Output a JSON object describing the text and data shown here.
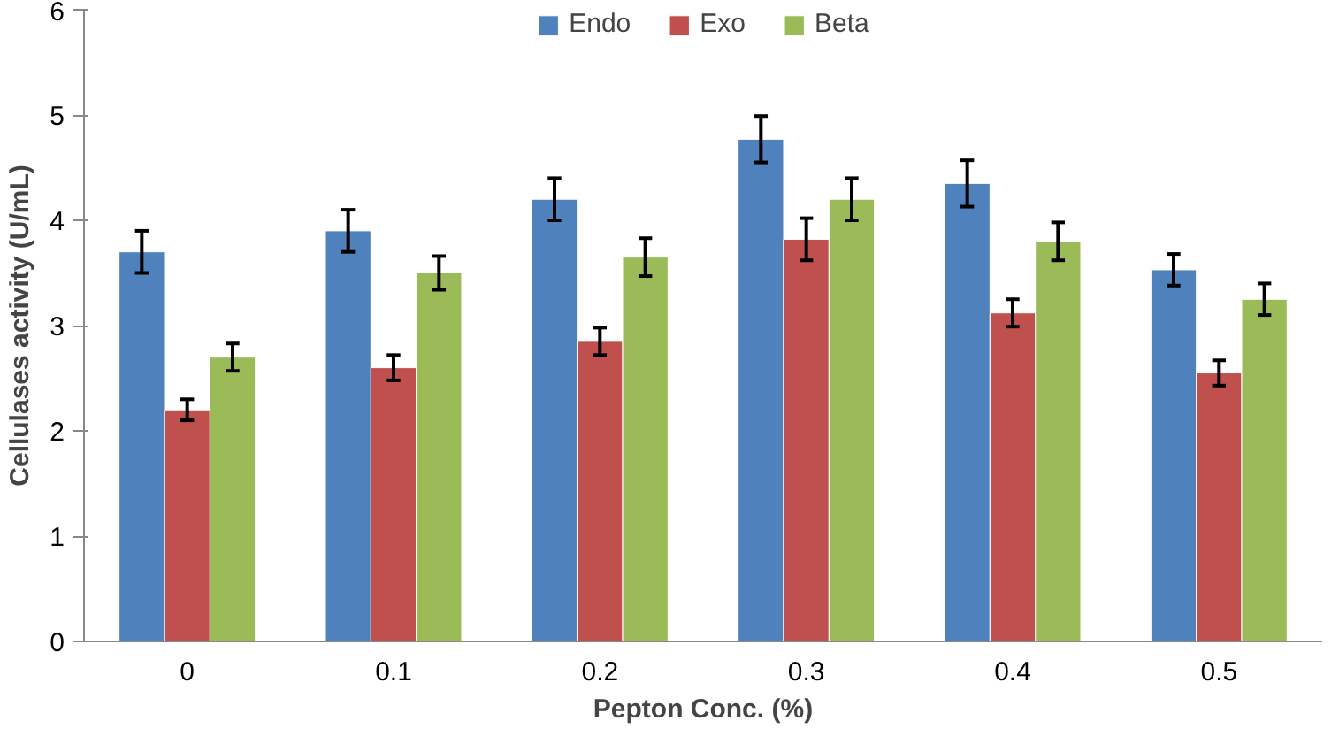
{
  "chart_data": {
    "type": "bar",
    "xlabel": "Pepton Conc. (%)",
    "ylabel": "Cellulases activity (U/mL)",
    "categories": [
      "0",
      "0.1",
      "0.2",
      "0.3",
      "0.4",
      "0.5"
    ],
    "series": [
      {
        "name": "Endo",
        "color": "#4f81bd",
        "values": [
          3.7,
          3.9,
          4.2,
          4.77,
          4.35,
          3.53
        ],
        "errors": [
          0.2,
          0.2,
          0.2,
          0.22,
          0.22,
          0.15
        ]
      },
      {
        "name": "Exo",
        "color": "#c0504d",
        "values": [
          2.2,
          2.6,
          2.85,
          3.82,
          3.12,
          2.55
        ],
        "errors": [
          0.1,
          0.12,
          0.13,
          0.2,
          0.13,
          0.12
        ]
      },
      {
        "name": "Beta",
        "color": "#9bbb59",
        "values": [
          2.7,
          3.5,
          3.65,
          4.2,
          3.8,
          3.25
        ],
        "errors": [
          0.13,
          0.16,
          0.18,
          0.2,
          0.18,
          0.15
        ]
      }
    ],
    "ylim": [
      0,
      6
    ],
    "yticks": [
      0,
      1,
      2,
      3,
      4,
      5,
      6
    ],
    "grid": false,
    "legend": "top"
  }
}
